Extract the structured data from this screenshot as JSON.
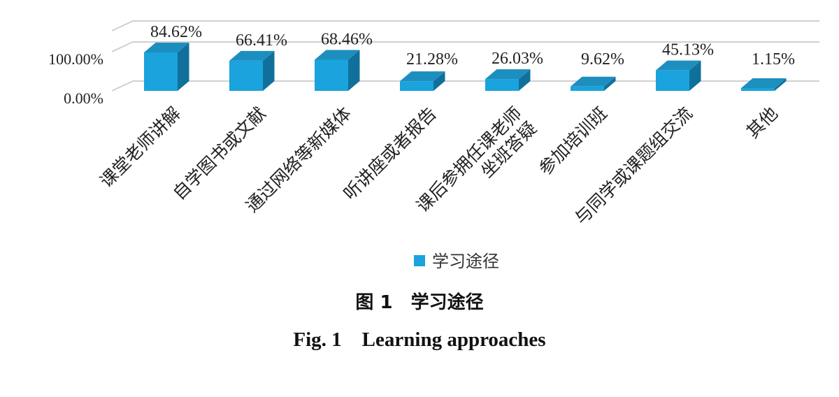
{
  "chart_data": {
    "type": "bar",
    "style": "3d-column",
    "categories": [
      "课堂老师讲解",
      "自学图书或文献",
      "通过网络等新媒体",
      "听讲座或者报告",
      "课后参拥任课老师坐班答疑",
      "参加培训班",
      "与同学或课题组交流",
      "其他"
    ],
    "category_lines": [
      [
        "课堂老师讲解"
      ],
      [
        "自学图书或文献"
      ],
      [
        "通过网络等新媒体"
      ],
      [
        "听讲座或者报告"
      ],
      [
        "课后参拥任课老师",
        "坐班答疑"
      ],
      [
        "参加培训班"
      ],
      [
        "与同学或课题组交流"
      ],
      [
        "其他"
      ]
    ],
    "series": [
      {
        "name": "学习途径",
        "values": [
          84.62,
          66.41,
          68.46,
          21.28,
          26.03,
          9.62,
          45.13,
          1.15
        ]
      }
    ],
    "data_labels": [
      "84.62%",
      "66.41%",
      "68.46%",
      "21.28%",
      "26.03%",
      "9.62%",
      "45.13%",
      "1.15%"
    ],
    "y_tick_labels": [
      "0.00%",
      "100.00%"
    ],
    "ylim": [
      0,
      100
    ],
    "grid": true,
    "legend_position": "bottom",
    "bar_color": "#1aa3dc",
    "bar_top_color": "#1d8fbf",
    "bar_side_color": "#11709b",
    "grid_color": "#d0d0d0"
  },
  "caption": {
    "chinese": "图 1　学习途径",
    "english": "Fig. 1　Learning approaches"
  }
}
